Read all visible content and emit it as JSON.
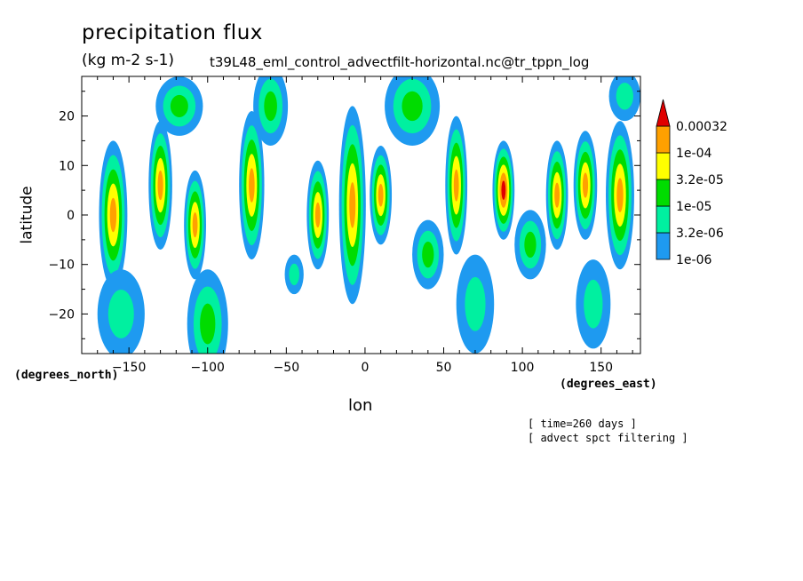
{
  "chart_data": {
    "type": "heatmap",
    "title": "precipitation flux",
    "units": "(kg m-2 s-1)",
    "dataset": "t39L48_eml_control_advectfilt-horizontal.nc@tr_tppn_log",
    "xlabel": "lon",
    "ylabel": "latitude",
    "x_units": "(degrees_east)",
    "y_units": "(degrees_north)",
    "xlim": [
      -180,
      175
    ],
    "ylim": [
      -28,
      28
    ],
    "x_ticks": [
      -150,
      -100,
      -50,
      0,
      50,
      100,
      150
    ],
    "y_ticks": [
      -20,
      -10,
      0,
      10,
      20
    ],
    "notes": [
      "[ time=260 days ]",
      "[ advect spct filtering ]"
    ],
    "levels": [
      "1e-06",
      "3.2e-06",
      "1e-05",
      "3.2e-05",
      "1e-04",
      "0.00032"
    ],
    "level_colors": [
      "#1e9af0",
      "#00f0a0",
      "#00dc00",
      "#ffff00",
      "#ffa000",
      "#e00000"
    ],
    "cells": [
      {
        "lon": -160,
        "lat": 0,
        "dlon": 18,
        "dlat": 30,
        "peak": 4
      },
      {
        "lon": -155,
        "lat": -20,
        "dlon": 30,
        "dlat": 18,
        "peak": 1
      },
      {
        "lon": -130,
        "lat": 6,
        "dlon": 15,
        "dlat": 26,
        "peak": 4
      },
      {
        "lon": -118,
        "lat": 22,
        "dlon": 30,
        "dlat": 12,
        "peak": 2
      },
      {
        "lon": -108,
        "lat": -2,
        "dlon": 14,
        "dlat": 22,
        "peak": 4
      },
      {
        "lon": -100,
        "lat": -22,
        "dlon": 26,
        "dlat": 22,
        "peak": 2
      },
      {
        "lon": -72,
        "lat": 6,
        "dlon": 16,
        "dlat": 30,
        "peak": 4
      },
      {
        "lon": -60,
        "lat": 22,
        "dlon": 22,
        "dlat": 16,
        "peak": 2
      },
      {
        "lon": -45,
        "lat": -12,
        "dlon": 12,
        "dlat": 8,
        "peak": 1
      },
      {
        "lon": -30,
        "lat": 0,
        "dlon": 14,
        "dlat": 22,
        "peak": 4
      },
      {
        "lon": -8,
        "lat": 2,
        "dlon": 17,
        "dlat": 40,
        "peak": 4
      },
      {
        "lon": 10,
        "lat": 4,
        "dlon": 14,
        "dlat": 20,
        "peak": 4
      },
      {
        "lon": 30,
        "lat": 22,
        "dlon": 35,
        "dlat": 16,
        "peak": 2
      },
      {
        "lon": 40,
        "lat": -8,
        "dlon": 20,
        "dlat": 14,
        "peak": 2
      },
      {
        "lon": 58,
        "lat": 6,
        "dlon": 14,
        "dlat": 28,
        "peak": 4
      },
      {
        "lon": 70,
        "lat": -18,
        "dlon": 24,
        "dlat": 20,
        "peak": 1
      },
      {
        "lon": 88,
        "lat": 5,
        "dlon": 14,
        "dlat": 20,
        "peak": 5
      },
      {
        "lon": 105,
        "lat": -6,
        "dlon": 20,
        "dlat": 14,
        "peak": 2
      },
      {
        "lon": 122,
        "lat": 4,
        "dlon": 14,
        "dlat": 22,
        "peak": 4
      },
      {
        "lon": 140,
        "lat": 6,
        "dlon": 15,
        "dlat": 22,
        "peak": 4
      },
      {
        "lon": 145,
        "lat": -18,
        "dlon": 22,
        "dlat": 18,
        "peak": 1
      },
      {
        "lon": 162,
        "lat": 4,
        "dlon": 18,
        "dlat": 30,
        "peak": 4
      },
      {
        "lon": 165,
        "lat": 24,
        "dlon": 20,
        "dlat": 10,
        "peak": 1
      }
    ]
  }
}
